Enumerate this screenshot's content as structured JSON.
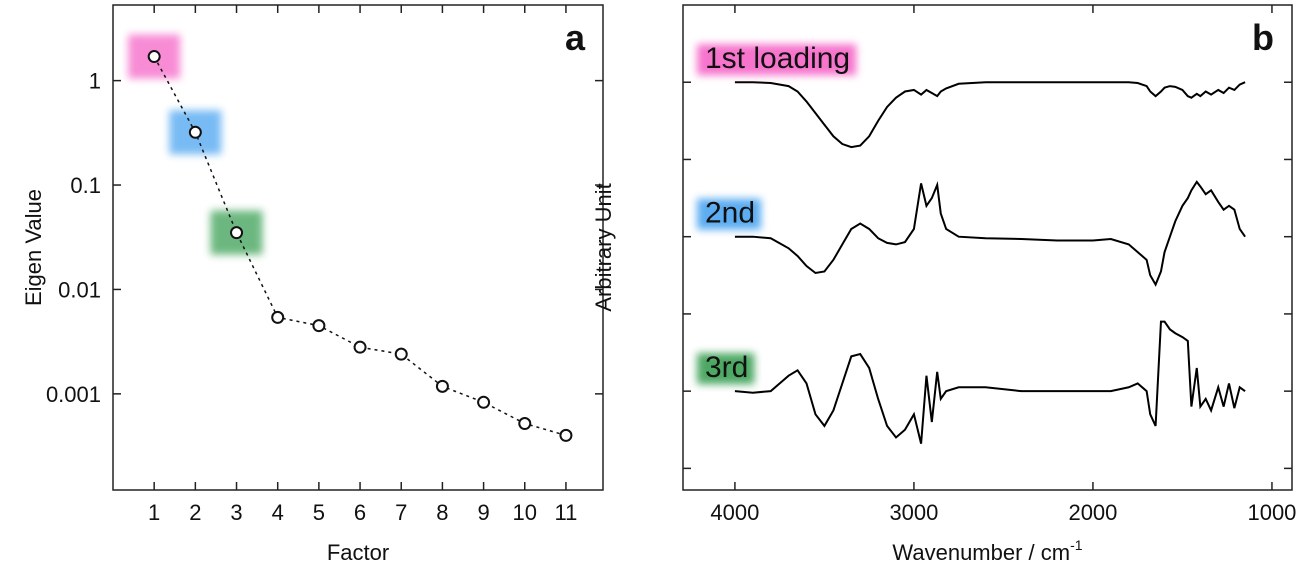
{
  "chart_data": [
    {
      "type": "scatter",
      "annotation": "a",
      "x_label": "Factor",
      "y_label": "Eigen Value",
      "x": [
        1,
        2,
        3,
        4,
        5,
        6,
        7,
        8,
        9,
        10,
        11
      ],
      "values": [
        1.7,
        0.32,
        0.035,
        0.0054,
        0.0045,
        0.0028,
        0.0024,
        0.00118,
        0.00083,
        0.00052,
        0.0004
      ],
      "highlight_colors": [
        "#f55cc4",
        "#3f9ff0",
        "#2f9a4a"
      ],
      "xlim": [
        0,
        11.9
      ],
      "xticks": [
        1,
        2,
        3,
        4,
        5,
        6,
        7,
        8,
        9,
        10,
        11
      ],
      "ylim": [
        0.00012,
        5.3
      ],
      "yticks": [
        1,
        0.1,
        0.01,
        0.001
      ],
      "y_log": true
    },
    {
      "type": "line",
      "annotation": "b",
      "x_label": {
        "text": "Wavenumber / cm",
        "superscript": "-1"
      },
      "y_label": "Arbitrary Unit",
      "x": [
        4000,
        3900,
        3800,
        3700,
        3650,
        3600,
        3550,
        3500,
        3450,
        3400,
        3350,
        3300,
        3250,
        3200,
        3150,
        3100,
        3050,
        3000,
        2960,
        2930,
        2900,
        2870,
        2850,
        2820,
        2750,
        2600,
        2400,
        2200,
        2000,
        1900,
        1800,
        1750,
        1700,
        1680,
        1650,
        1620,
        1600,
        1570,
        1540,
        1500,
        1470,
        1450,
        1420,
        1400,
        1370,
        1340,
        1300,
        1270,
        1240,
        1210,
        1180,
        1150
      ],
      "series": [
        {
          "name": "1st loading",
          "color": "#000000",
          "label_color": "#f55cc4",
          "values": [
            5.0,
            5.0,
            4.99,
            4.95,
            4.88,
            4.75,
            4.6,
            4.45,
            4.3,
            4.2,
            4.16,
            4.18,
            4.3,
            4.5,
            4.68,
            4.8,
            4.88,
            4.9,
            4.84,
            4.9,
            4.86,
            4.82,
            4.88,
            4.92,
            4.98,
            5.0,
            5.0,
            5.0,
            5.0,
            5.0,
            5.0,
            4.99,
            4.95,
            4.88,
            4.82,
            4.88,
            4.93,
            4.95,
            4.94,
            4.9,
            4.82,
            4.8,
            4.85,
            4.82,
            4.88,
            4.84,
            4.9,
            4.86,
            4.93,
            4.9,
            4.97,
            5.0
          ]
        },
        {
          "name": "2nd",
          "color": "#000000",
          "label_color": "#3f9ff0",
          "values": [
            3.0,
            3.0,
            2.98,
            2.85,
            2.75,
            2.62,
            2.53,
            2.55,
            2.7,
            2.9,
            3.1,
            3.17,
            3.1,
            2.98,
            2.92,
            2.9,
            2.93,
            3.1,
            3.69,
            3.4,
            3.5,
            3.67,
            3.3,
            3.1,
            3.0,
            2.98,
            2.97,
            2.95,
            2.95,
            2.97,
            2.9,
            2.8,
            2.7,
            2.5,
            2.38,
            2.55,
            2.8,
            3.0,
            3.2,
            3.4,
            3.5,
            3.6,
            3.71,
            3.65,
            3.55,
            3.6,
            3.45,
            3.35,
            3.4,
            3.35,
            3.1,
            3.0
          ]
        },
        {
          "name": "3rd",
          "color": "#000000",
          "label_color": "#2f9a4a",
          "values": [
            1.0,
            0.98,
            1.0,
            1.2,
            1.27,
            1.1,
            0.7,
            0.55,
            0.75,
            1.1,
            1.45,
            1.48,
            1.3,
            0.9,
            0.55,
            0.4,
            0.5,
            0.7,
            0.32,
            1.2,
            0.6,
            1.25,
            0.9,
            1.0,
            1.05,
            1.05,
            1.0,
            1.0,
            1.0,
            1.0,
            1.05,
            1.1,
            1.0,
            0.7,
            0.55,
            1.9,
            1.9,
            1.8,
            1.75,
            1.7,
            1.65,
            0.8,
            1.3,
            0.8,
            0.9,
            0.75,
            1.05,
            0.8,
            1.1,
            0.78,
            1.05,
            1.0
          ]
        }
      ],
      "xlim": [
        4290,
        888
      ],
      "xticks": [
        4000,
        3000,
        2000,
        1000
      ],
      "ylim": [
        -0.28,
        6.0
      ],
      "yticks": [
        0,
        1,
        2,
        3,
        4,
        5
      ]
    }
  ]
}
